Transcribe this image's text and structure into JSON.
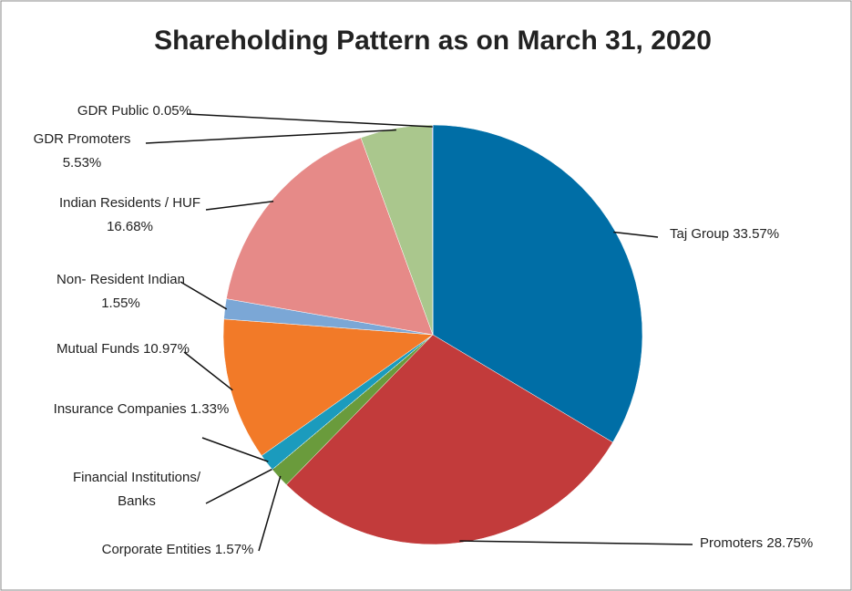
{
  "chart_data": {
    "type": "pie",
    "title": "Shareholding Pattern as on March 31, 2020",
    "categories": [
      "Taj Group",
      "Promoters",
      "Corporate Entities",
      "Financial Institutions/ Banks",
      "Insurance Companies",
      "Mutual Funds",
      "Non- Resident Indian",
      "Indian Residents / HUF",
      "GDR Promoters",
      "GDR Public"
    ],
    "values": [
      33.57,
      28.75,
      1.57,
      0,
      1.33,
      10.97,
      1.55,
      16.68,
      5.53,
      0.05
    ],
    "value_labels": [
      "33.57%",
      "28.75%",
      "1.57%",
      null,
      "1.33%",
      "10.97%",
      "1.55%",
      "16.68%",
      "5.53%",
      "0.05%"
    ],
    "colors": [
      "#006ea6",
      "#c23b3b",
      "#6a9b3c",
      "#7d5fa0",
      "#1b9bbd",
      "#f27a28",
      "#7ba7d6",
      "#e68a88",
      "#aac78d",
      "#8064a2"
    ]
  }
}
